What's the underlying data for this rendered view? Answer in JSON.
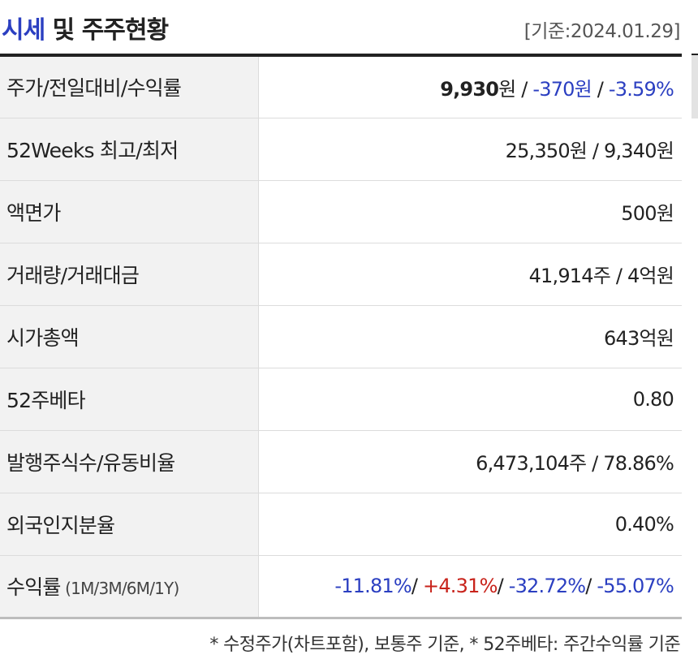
{
  "header": {
    "title_accent": "시세",
    "title_rest": " 및 주주현황",
    "base_date": "[기준:2024.01.29]"
  },
  "rows": [
    {
      "label": "주가/전일대비/수익률",
      "price": "9,930",
      "price_unit": "원",
      "sep1": " / ",
      "change": "-370원",
      "sep2": " / ",
      "rate": "-3.59%"
    },
    {
      "label": "52Weeks 최고/최저",
      "value": "25,350원 / 9,340원"
    },
    {
      "label": "액면가",
      "value": "500원"
    },
    {
      "label": "거래량/거래대금",
      "value": "41,914주 / 4억원"
    },
    {
      "label": "시가총액",
      "value": "643억원"
    },
    {
      "label": "52주베타",
      "value": "0.80"
    },
    {
      "label": "발행주식수/유동비율",
      "value": "6,473,104주 / 78.86%"
    },
    {
      "label": "외국인지분율",
      "value": "0.40%"
    },
    {
      "label": "수익률",
      "period": " (1M/3M/6M/1Y)",
      "returns": [
        "-11.81%",
        "+4.31%",
        "-32.72%",
        "-55.07%"
      ],
      "sep": "/ "
    }
  ],
  "footnote": "* 수정주가(차트포함), 보통주 기준, * 52주베타: 주간수익률 기준",
  "colors": {
    "accent_blue": "#2b3fc1",
    "positive_red": "#c8231b",
    "label_bg": "#f2f2f2",
    "header_rule": "#222222"
  }
}
